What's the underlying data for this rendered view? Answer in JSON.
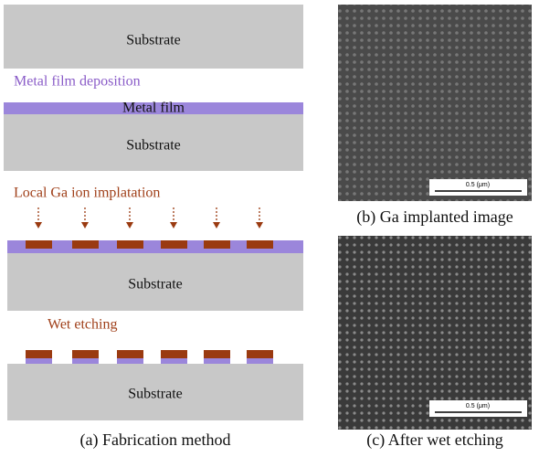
{
  "fabrication": {
    "steps": [
      {
        "substrate": "Substrate"
      },
      {
        "label": "Metal film deposition",
        "film": "Metal film",
        "substrate": "Substrate"
      },
      {
        "label": "Local Ga ion implatation",
        "substrate": "Substrate"
      },
      {
        "label": "Wet etching",
        "substrate": "Substrate"
      }
    ],
    "caption": "(a) Fabrication method"
  },
  "images": [
    {
      "scale_bar": "0.5 (μm)",
      "caption": "(b) Ga implanted image"
    },
    {
      "scale_bar": "0.5 (μm)",
      "caption": "(c) After wet etching"
    }
  ]
}
